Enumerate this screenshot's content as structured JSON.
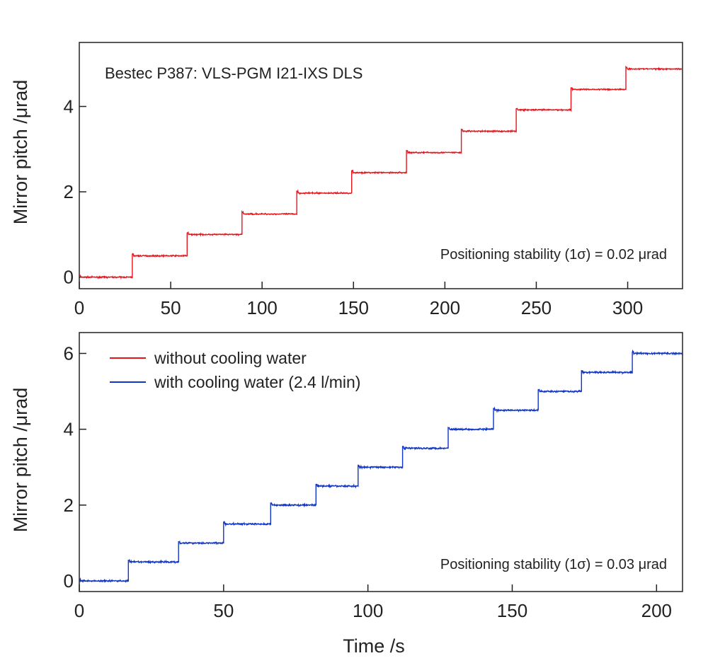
{
  "chart_data": [
    {
      "type": "line",
      "title": "Bestec P387: VLS-PGM I21-IXS DLS",
      "annotation": "Positioning stability (1σ) = 0.02 μrad",
      "xlabel": "",
      "ylabel": "Mirror pitch /μrad",
      "xlim": [
        0,
        330
      ],
      "ylim": [
        -0.27,
        5.5
      ],
      "xticks": [
        0,
        50,
        100,
        150,
        200,
        250,
        300
      ],
      "yticks": [
        0,
        2,
        4
      ],
      "series": [
        {
          "name": "without cooling water",
          "color": "#e8141c",
          "noise_sigma": 0.02,
          "steps": [
            {
              "x_start": 0,
              "x_end": 29,
              "y": 0.0
            },
            {
              "x_start": 29,
              "x_end": 59,
              "y": 0.5
            },
            {
              "x_start": 59,
              "x_end": 89,
              "y": 1.0
            },
            {
              "x_start": 89,
              "x_end": 119,
              "y": 1.48
            },
            {
              "x_start": 119,
              "x_end": 149,
              "y": 1.97
            },
            {
              "x_start": 149,
              "x_end": 179,
              "y": 2.45
            },
            {
              "x_start": 179,
              "x_end": 209,
              "y": 2.92
            },
            {
              "x_start": 209,
              "x_end": 239,
              "y": 3.42
            },
            {
              "x_start": 239,
              "x_end": 269,
              "y": 3.92
            },
            {
              "x_start": 269,
              "x_end": 299,
              "y": 4.4
            },
            {
              "x_start": 299,
              "x_end": 330,
              "y": 4.88
            }
          ]
        }
      ]
    },
    {
      "type": "line",
      "title": "",
      "annotation": "Positioning stability (1σ) = 0.03 μrad",
      "xlabel": "Time /s",
      "ylabel": "Mirror pitch /μrad",
      "xlim": [
        0,
        209
      ],
      "ylim": [
        -0.28,
        6.55
      ],
      "xticks": [
        0,
        50,
        100,
        150,
        200
      ],
      "yticks": [
        0,
        2,
        4,
        6
      ],
      "legend": {
        "placement": "top-left",
        "entries": [
          {
            "label": "without cooling water",
            "color": "#e8141c"
          },
          {
            "label": "with cooling water (2.4 l/min)",
            "color": "#1035c8"
          }
        ]
      },
      "series": [
        {
          "name": "with cooling water (2.4 l/min)",
          "color": "#1035c8",
          "noise_sigma": 0.03,
          "steps": [
            {
              "x_start": 0,
              "x_end": 17,
              "y": 0.0
            },
            {
              "x_start": 17,
              "x_end": 34.4,
              "y": 0.5
            },
            {
              "x_start": 34.4,
              "x_end": 50,
              "y": 1.0
            },
            {
              "x_start": 50,
              "x_end": 66.3,
              "y": 1.5
            },
            {
              "x_start": 66.3,
              "x_end": 82,
              "y": 2.0
            },
            {
              "x_start": 82,
              "x_end": 96.6,
              "y": 2.5
            },
            {
              "x_start": 96.6,
              "x_end": 112,
              "y": 3.0
            },
            {
              "x_start": 112,
              "x_end": 127.8,
              "y": 3.5
            },
            {
              "x_start": 127.8,
              "x_end": 143.5,
              "y": 4.0
            },
            {
              "x_start": 143.5,
              "x_end": 159,
              "y": 4.5
            },
            {
              "x_start": 159,
              "x_end": 174,
              "y": 5.0
            },
            {
              "x_start": 174,
              "x_end": 191.6,
              "y": 5.5
            },
            {
              "x_start": 191.6,
              "x_end": 209,
              "y": 6.0
            }
          ]
        }
      ]
    }
  ]
}
